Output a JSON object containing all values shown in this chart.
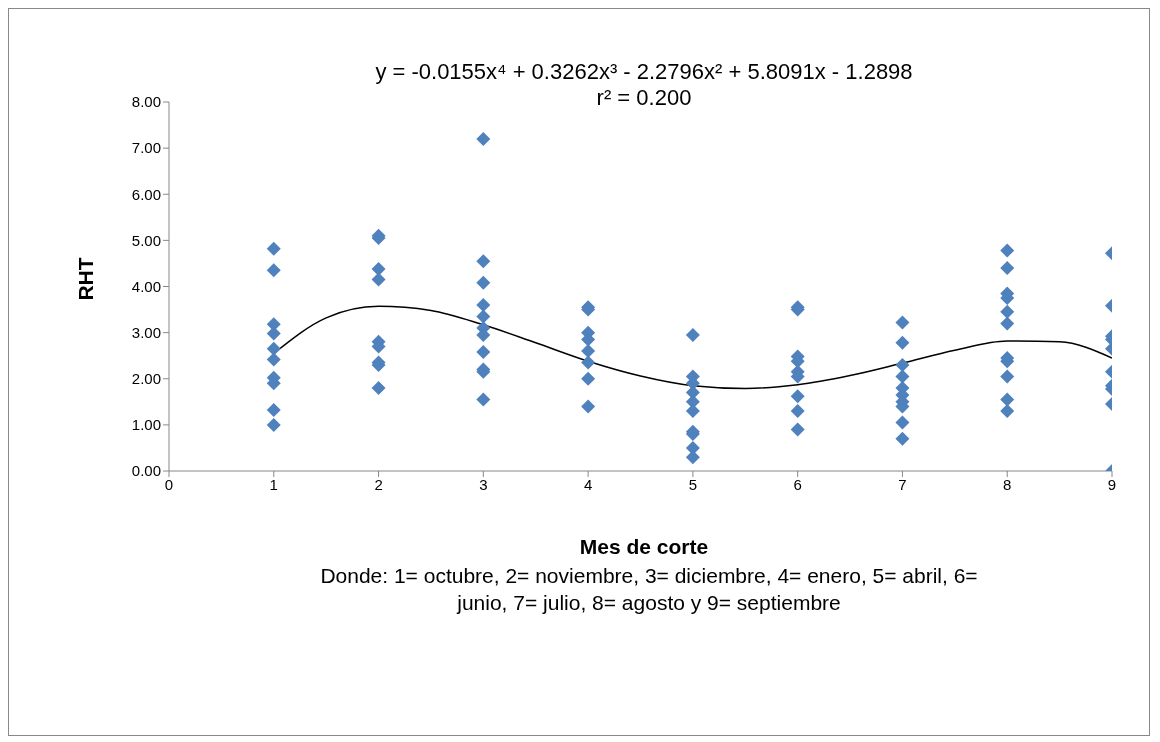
{
  "chart_data": {
    "type": "scatter",
    "title": "y = -0.0155x⁴ + 0.3262x³ - 2.2796x² + 5.8091x - 1.2898",
    "subtitle": "r² = 0.200",
    "xlabel": "Mes de corte",
    "ylabel": "RHT",
    "annotations": [
      "Donde: 1= octubre, 2= noviembre, 3= diciembre, 4= enero, 5= abril, 6= junio, 7= julio, 8= agosto y 9= septiembre"
    ],
    "xlim": [
      0,
      9
    ],
    "xticks": [
      0,
      1,
      2,
      3,
      4,
      5,
      6,
      7,
      8,
      9
    ],
    "ylim": [
      0,
      8
    ],
    "yticks": [
      {
        "value": 0,
        "label": "0.00"
      },
      {
        "value": 1,
        "label": "1.00"
      },
      {
        "value": 2,
        "label": "2.00"
      },
      {
        "value": 3,
        "label": "3.00"
      },
      {
        "value": 4,
        "label": "4.00"
      },
      {
        "value": 5,
        "label": "5.00"
      },
      {
        "value": 6,
        "label": "6.00"
      },
      {
        "value": 7,
        "label": "7.00"
      },
      {
        "value": 8,
        "label": "8.00"
      }
    ],
    "grid": false,
    "marker": "diamond",
    "series": [
      {
        "color": "#4f81bd",
        "x": [
          1,
          1,
          1,
          1,
          1,
          1,
          1,
          1,
          1,
          1,
          2,
          2,
          2,
          2,
          2,
          2,
          2,
          2,
          2,
          3,
          3,
          3,
          3,
          3,
          3,
          3,
          3,
          3,
          3,
          3,
          4,
          4,
          4,
          4,
          4,
          4,
          4,
          4,
          5,
          5,
          5,
          5,
          5,
          5,
          5,
          5,
          5,
          5,
          6,
          6,
          6,
          6,
          6,
          6,
          6,
          6,
          6,
          7,
          7,
          7,
          7,
          7,
          7,
          7,
          7,
          7,
          7,
          8,
          8,
          8,
          8,
          8,
          8,
          8,
          8,
          8,
          8,
          8,
          9,
          9,
          9,
          9,
          9,
          9,
          9,
          9,
          9,
          9
        ],
        "values": [
          4.82,
          4.35,
          3.18,
          2.98,
          2.65,
          2.42,
          2.02,
          1.9,
          1.32,
          1.0,
          5.1,
          5.05,
          4.38,
          4.15,
          2.8,
          2.7,
          2.35,
          2.3,
          1.8,
          7.2,
          4.55,
          4.08,
          3.6,
          3.35,
          3.1,
          2.95,
          2.58,
          2.2,
          2.15,
          1.55,
          3.55,
          3.5,
          3.0,
          2.85,
          2.6,
          2.35,
          2.0,
          1.4,
          2.95,
          2.05,
          1.9,
          1.7,
          1.5,
          1.3,
          0.85,
          0.8,
          0.5,
          0.3,
          3.55,
          3.5,
          2.48,
          2.38,
          2.15,
          2.05,
          1.62,
          1.3,
          0.9,
          3.22,
          2.78,
          2.3,
          2.05,
          1.8,
          1.65,
          1.5,
          1.4,
          1.05,
          0.7,
          4.78,
          4.4,
          3.85,
          3.75,
          3.45,
          3.2,
          2.45,
          2.38,
          2.05,
          1.55,
          1.3,
          4.72,
          3.58,
          2.92,
          2.85,
          2.65,
          2.15,
          1.85,
          1.78,
          1.45,
          0.0
        ]
      },
      {
        "type": "line",
        "color": "#000000",
        "marker": "none",
        "line_style": "solid",
        "x": [
          1,
          1.5,
          2,
          2.5,
          3,
          3.5,
          4,
          4.5,
          5,
          5.5,
          6,
          6.5,
          7,
          7.5,
          8,
          8.5,
          9
        ],
        "values": [
          2.55,
          3.32,
          3.57,
          3.48,
          3.17,
          2.78,
          2.38,
          2.06,
          1.85,
          1.79,
          1.87,
          2.07,
          2.34,
          2.62,
          2.82,
          2.8,
          2.45
        ]
      }
    ]
  }
}
